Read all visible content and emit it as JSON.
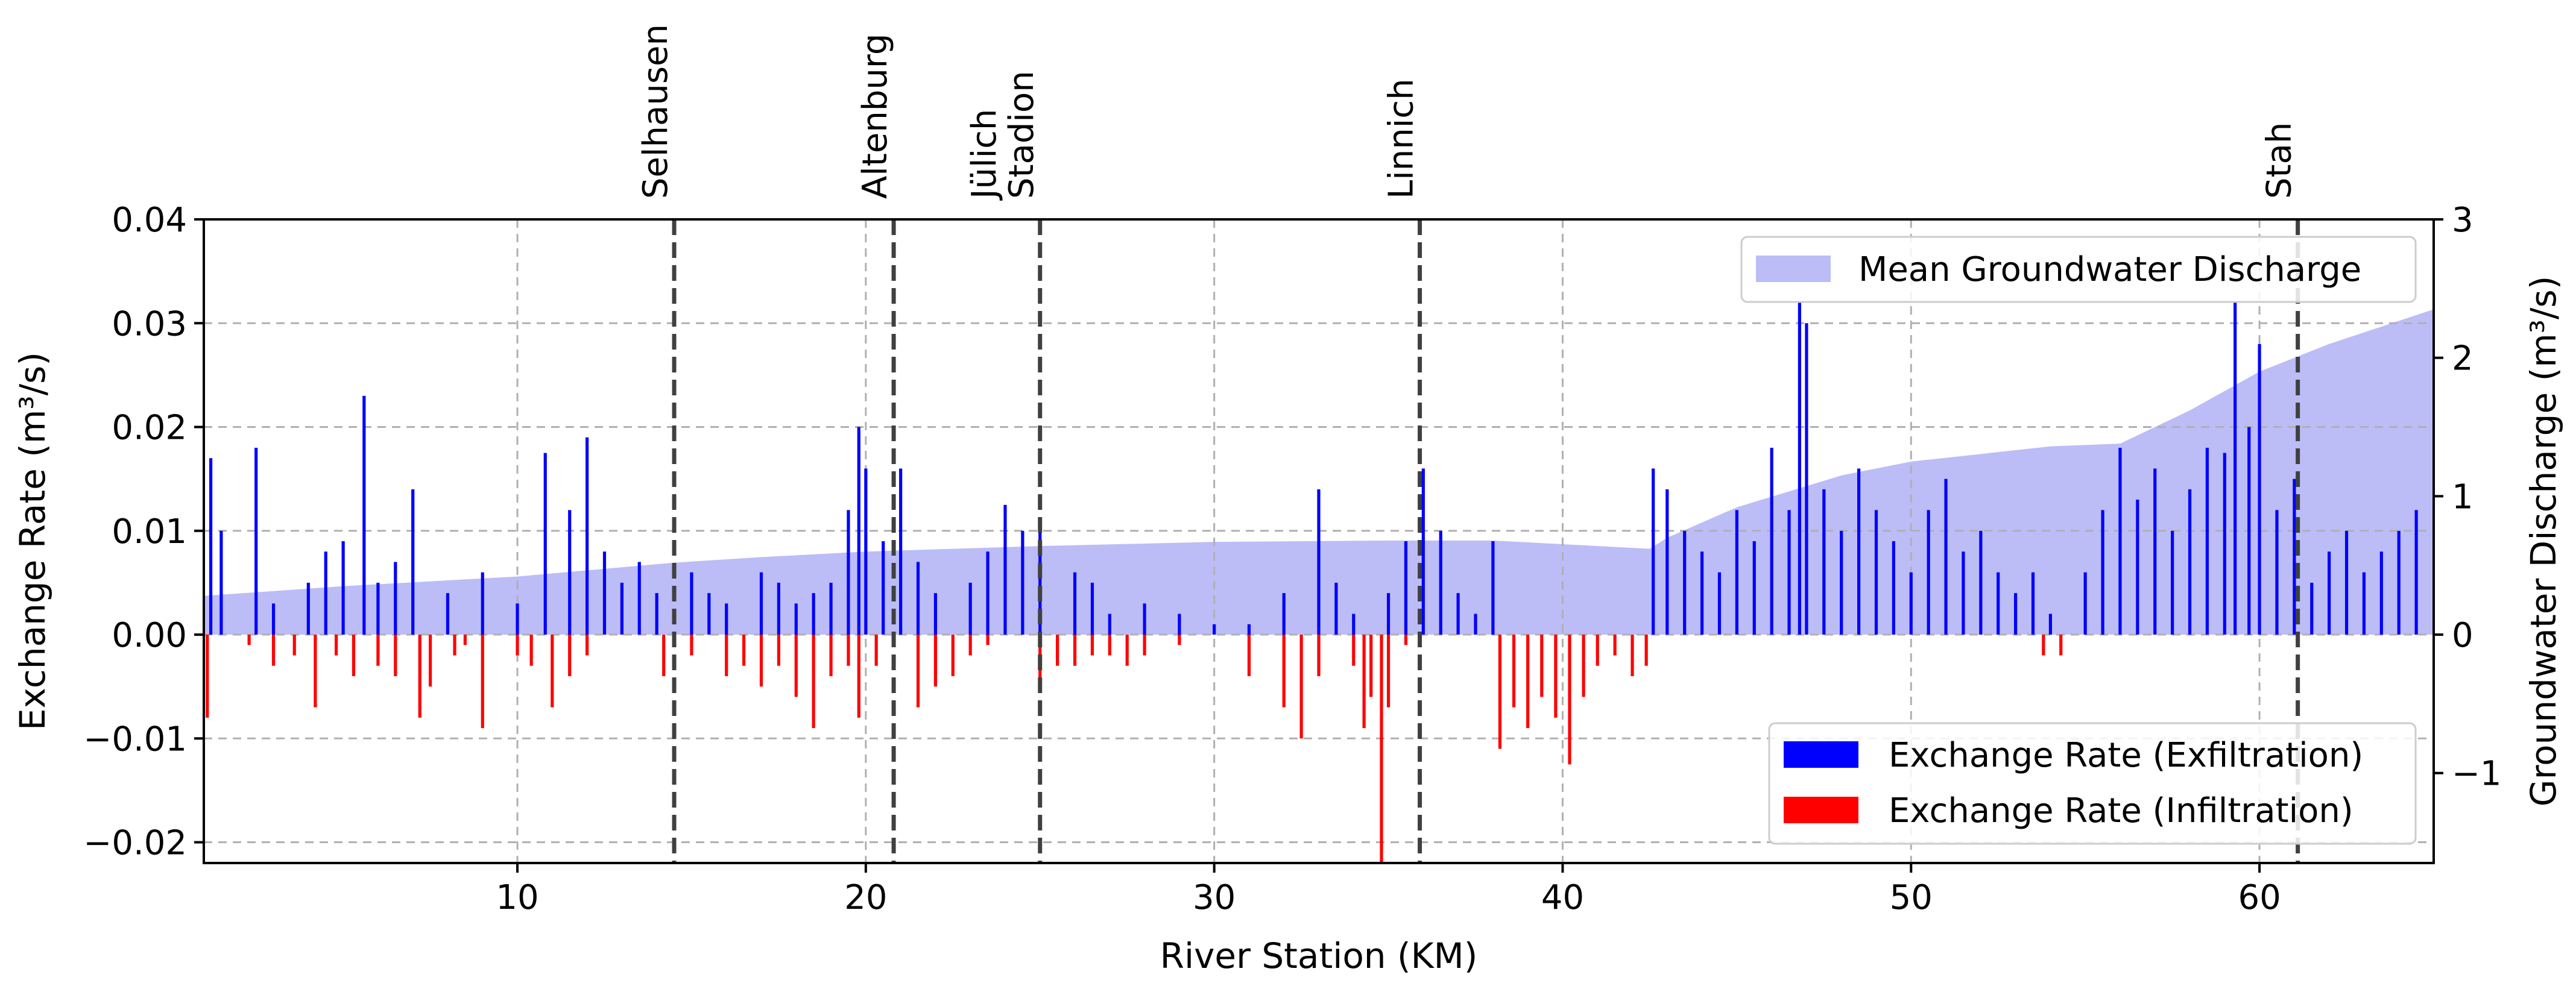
{
  "chart_data": {
    "type": "bar",
    "xlabel": "River Station (KM)",
    "ylabel_left": "Exchange Rate (m³/s)",
    "ylabel_right": "Groundwater Discharge (m³/s)",
    "xlim": [
      1,
      65
    ],
    "ylim_left": [
      -0.022,
      0.04
    ],
    "ylim_right": [
      -1.65,
      3
    ],
    "xticks": [
      10,
      20,
      30,
      40,
      50,
      60
    ],
    "xtick_labels": [
      "10",
      "20",
      "30",
      "40",
      "50",
      "60"
    ],
    "yticks_left": [
      -0.02,
      -0.01,
      0.0,
      0.01,
      0.02,
      0.03,
      0.04
    ],
    "ytick_labels_left": [
      "−0.02",
      "−0.01",
      "0.00",
      "0.01",
      "0.02",
      "0.03",
      "0.04"
    ],
    "yticks_right": [
      -1,
      0,
      1,
      2,
      3
    ],
    "ytick_labels_right": [
      "−1",
      "0",
      "1",
      "2",
      "3"
    ],
    "grid": true,
    "stations": [
      {
        "km": 14.5,
        "lines": [
          "Selhausen"
        ]
      },
      {
        "km": 20.8,
        "lines": [
          "Altenburg"
        ]
      },
      {
        "km": 25.0,
        "lines": [
          "Jülich",
          "Stadion"
        ]
      },
      {
        "km": 35.9,
        "lines": [
          "Linnich"
        ]
      },
      {
        "km": 61.1,
        "lines": [
          "Stah"
        ]
      }
    ],
    "groundwater_discharge": {
      "name": "Mean Groundwater Discharge",
      "color": "#bcbcf7",
      "x": [
        1,
        5,
        10,
        14.5,
        17,
        20,
        25,
        30,
        35,
        38,
        42.5,
        43,
        45,
        48,
        50,
        54,
        56,
        58,
        60,
        62,
        65
      ],
      "y": [
        0.28,
        0.35,
        0.42,
        0.52,
        0.56,
        0.6,
        0.64,
        0.67,
        0.68,
        0.68,
        0.62,
        0.7,
        0.92,
        1.15,
        1.25,
        1.36,
        1.38,
        1.62,
        1.9,
        2.1,
        2.35
      ]
    },
    "exfiltration": {
      "name": "Exchange Rate (Exfiltration)",
      "color": "#0000ff",
      "x": [
        1.2,
        1.5,
        2.5,
        3.0,
        4.0,
        4.5,
        5.0,
        5.6,
        6.0,
        6.5,
        7.0,
        8.0,
        9.0,
        10.0,
        10.8,
        11.5,
        12.0,
        12.5,
        13.0,
        13.5,
        14.0,
        15.0,
        15.5,
        16.0,
        17.0,
        17.5,
        18.0,
        18.5,
        19.0,
        19.5,
        19.8,
        20.0,
        20.5,
        21.0,
        21.5,
        22.0,
        23.0,
        23.5,
        24.0,
        24.5,
        25.0,
        26.0,
        26.5,
        27.0,
        28.0,
        29.0,
        30.0,
        31.0,
        32.0,
        33.0,
        33.5,
        34.0,
        35.0,
        35.5,
        36.0,
        36.5,
        37.0,
        37.5,
        38.0,
        42.6,
        43.0,
        43.5,
        44.0,
        44.5,
        45.0,
        45.5,
        46.0,
        46.5,
        46.8,
        47.0,
        47.5,
        48.0,
        48.5,
        49.0,
        49.5,
        50.0,
        50.5,
        51.0,
        51.5,
        52.0,
        52.5,
        53.0,
        53.5,
        54.0,
        55.0,
        55.5,
        56.0,
        56.5,
        57.0,
        57.5,
        58.0,
        58.5,
        59.0,
        59.3,
        59.7,
        60.0,
        60.5,
        61.0,
        61.5,
        62.0,
        62.5,
        63.0,
        63.5,
        64.0,
        64.5
      ],
      "values": [
        0.017,
        0.01,
        0.018,
        0.003,
        0.005,
        0.008,
        0.009,
        0.023,
        0.005,
        0.007,
        0.014,
        0.004,
        0.006,
        0.003,
        0.0175,
        0.012,
        0.019,
        0.008,
        0.005,
        0.007,
        0.004,
        0.006,
        0.004,
        0.003,
        0.006,
        0.005,
        0.003,
        0.004,
        0.005,
        0.012,
        0.02,
        0.016,
        0.009,
        0.016,
        0.007,
        0.004,
        0.005,
        0.008,
        0.0125,
        0.01,
        0.011,
        0.006,
        0.005,
        0.002,
        0.003,
        0.002,
        0.001,
        0.001,
        0.004,
        0.014,
        0.005,
        0.002,
        0.004,
        0.009,
        0.016,
        0.01,
        0.004,
        0.002,
        0.009,
        0.016,
        0.014,
        0.01,
        0.008,
        0.006,
        0.012,
        0.009,
        0.018,
        0.012,
        0.032,
        0.03,
        0.014,
        0.01,
        0.016,
        0.012,
        0.009,
        0.006,
        0.012,
        0.015,
        0.008,
        0.01,
        0.006,
        0.004,
        0.006,
        0.002,
        0.006,
        0.012,
        0.018,
        0.013,
        0.016,
        0.01,
        0.014,
        0.018,
        0.0175,
        0.032,
        0.02,
        0.028,
        0.012,
        0.015,
        0.005,
        0.008,
        0.01,
        0.006,
        0.008,
        0.01,
        0.012
      ],
      "bar_width_km": 0.09
    },
    "infiltration": {
      "name": "Exchange Rate (Infiltration)",
      "color": "#ff0000",
      "x": [
        1.1,
        2.3,
        3.0,
        3.6,
        4.2,
        4.8,
        5.3,
        6.0,
        6.5,
        7.2,
        7.5,
        8.2,
        8.5,
        9.0,
        10.0,
        10.4,
        11.0,
        11.5,
        12.0,
        14.2,
        15.0,
        16.0,
        16.5,
        17.0,
        17.5,
        18.0,
        18.5,
        19.0,
        19.5,
        19.8,
        20.3,
        21.5,
        22.0,
        22.5,
        23.0,
        23.5,
        25.0,
        25.5,
        26.0,
        26.5,
        27.0,
        27.5,
        28.0,
        29.0,
        31.0,
        32.0,
        32.5,
        33.0,
        34.0,
        34.3,
        34.5,
        34.8,
        35.0,
        35.5,
        38.2,
        38.6,
        39.0,
        39.4,
        39.8,
        40.2,
        40.6,
        41.0,
        41.5,
        42.0,
        42.4,
        53.8,
        54.3
      ],
      "values": [
        -0.008,
        -0.001,
        -0.003,
        -0.002,
        -0.007,
        -0.002,
        -0.004,
        -0.003,
        -0.004,
        -0.008,
        -0.005,
        -0.002,
        -0.001,
        -0.009,
        -0.002,
        -0.003,
        -0.007,
        -0.004,
        -0.002,
        -0.004,
        -0.002,
        -0.004,
        -0.003,
        -0.005,
        -0.003,
        -0.006,
        -0.009,
        -0.004,
        -0.003,
        -0.008,
        -0.003,
        -0.007,
        -0.005,
        -0.004,
        -0.002,
        -0.001,
        -0.005,
        -0.003,
        -0.003,
        -0.002,
        -0.002,
        -0.003,
        -0.002,
        -0.001,
        -0.004,
        -0.007,
        -0.01,
        -0.004,
        -0.003,
        -0.009,
        -0.006,
        -0.022,
        -0.007,
        -0.001,
        -0.011,
        -0.007,
        -0.009,
        -0.006,
        -0.008,
        -0.0125,
        -0.006,
        -0.003,
        -0.002,
        -0.004,
        -0.003,
        -0.002,
        -0.002
      ],
      "bar_width_km": 0.09
    },
    "legends": [
      {
        "position": "top-right",
        "entries": [
          "Mean Groundwater Discharge"
        ]
      },
      {
        "position": "bottom-right",
        "entries": [
          "Exchange Rate (Exfiltration)",
          "Exchange Rate (Infiltration)"
        ]
      }
    ]
  }
}
